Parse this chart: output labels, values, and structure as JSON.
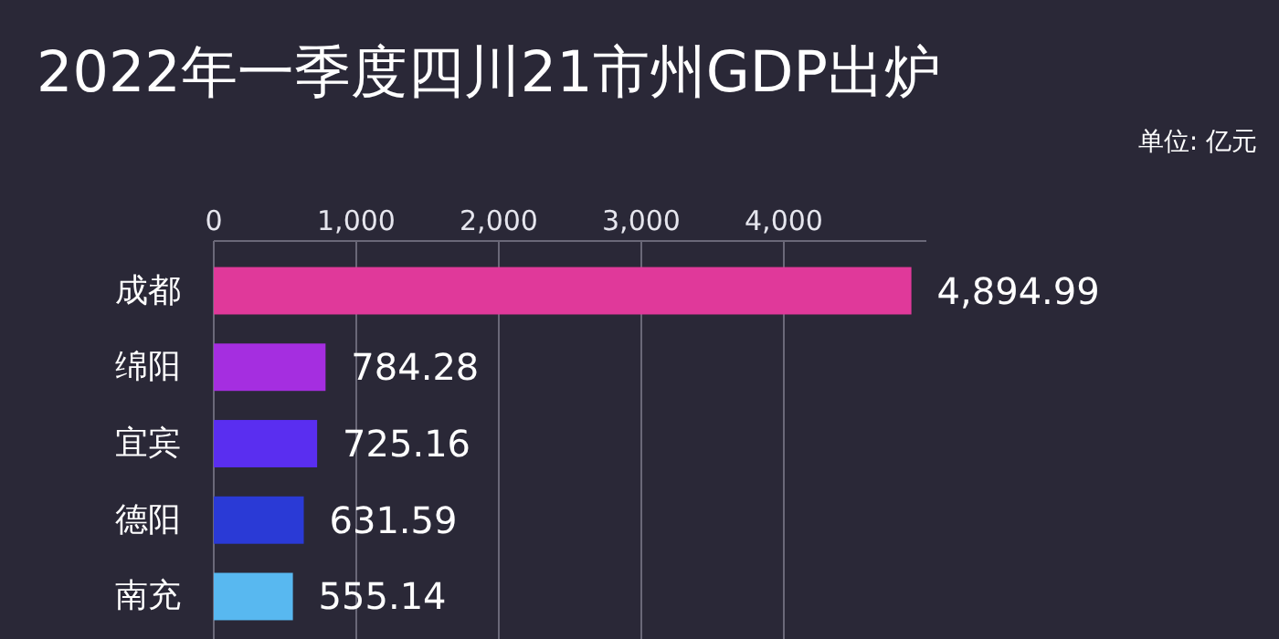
{
  "chart_data": {
    "type": "bar",
    "orientation": "horizontal",
    "title": "2022年一季度四川21市州GDP出炉",
    "annotations": [
      "单位: 亿元"
    ],
    "categories": [
      "成都",
      "绵阳",
      "宜宾",
      "德阳",
      "南充"
    ],
    "values": [
      4894.99,
      784.28,
      725.16,
      631.59,
      555.14
    ],
    "colors": [
      "#e0399a",
      "#a52ee0",
      "#5a2ef0",
      "#2a3ad6",
      "#58b8f0"
    ],
    "value_labels": [
      "4,894.99",
      "784.28",
      "725.16",
      "631.59",
      "555.14"
    ],
    "xlim": [
      0,
      5000
    ],
    "xticks": [
      {
        "value": 0,
        "label": "0"
      },
      {
        "value": 1000,
        "label": "1,000"
      },
      {
        "value": 2000,
        "label": "2,000"
      },
      {
        "value": 3000,
        "label": "3,000"
      },
      {
        "value": 4000,
        "label": "4,000"
      }
    ],
    "grid": "x"
  }
}
